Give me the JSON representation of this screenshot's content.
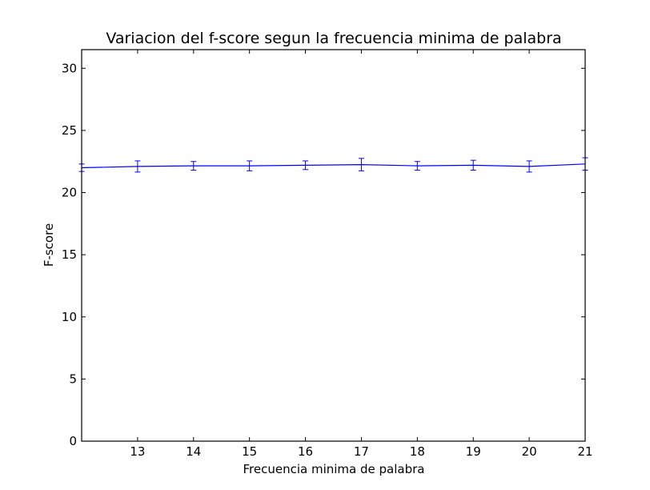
{
  "chart_data": {
    "type": "line",
    "title": "Variacion del f-score segun la frecuencia minima de palabra",
    "xlabel": "Frecuencia minima de palabra",
    "ylabel": "F-score",
    "xlim": [
      12,
      21
    ],
    "ylim": [
      0,
      31.5
    ],
    "xticks": [
      13,
      14,
      15,
      16,
      17,
      18,
      19,
      20,
      21
    ],
    "yticks": [
      0,
      5,
      10,
      15,
      20,
      25,
      30
    ],
    "grid": false,
    "series": [
      {
        "color": "#0000ff",
        "x": [
          12,
          13,
          14,
          15,
          16,
          17,
          18,
          19,
          20,
          21
        ],
        "y": [
          22.0,
          22.1,
          22.15,
          22.15,
          22.2,
          22.25,
          22.15,
          22.2,
          22.1,
          22.3
        ],
        "err": [
          0.3,
          0.45,
          0.35,
          0.4,
          0.35,
          0.5,
          0.35,
          0.4,
          0.45,
          0.5
        ]
      }
    ]
  }
}
